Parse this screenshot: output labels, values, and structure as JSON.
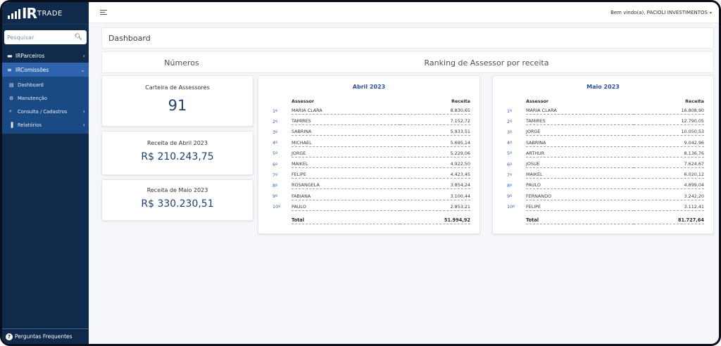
{
  "brand": {
    "logo_ir": "IR",
    "logo_trade": "TRADE"
  },
  "search": {
    "placeholder": "Pesquisar"
  },
  "sidebar": {
    "items": [
      {
        "label": "IRParceiros",
        "icon": "handshake-icon"
      },
      {
        "label": "IRComissões",
        "icon": "list-icon"
      }
    ],
    "subitems": [
      {
        "label": "Dashboard",
        "icon": "chart-icon"
      },
      {
        "label": "Manutenção",
        "icon": "gear-icon"
      },
      {
        "label": "Consulta / Cadastros",
        "icon": "search-icon"
      },
      {
        "label": "Relatórios",
        "icon": "bar-chart-icon"
      }
    ],
    "footer": "Perguntas Frequentes"
  },
  "topbar": {
    "welcome": "Bem vindo(a), PACIOLI INVESTIMENTOS"
  },
  "page": {
    "breadcrumb": "Dashboard",
    "section_left": "Números",
    "section_right": "Ranking de Assessor por receita"
  },
  "stats": [
    {
      "label": "Carteira de Assessores",
      "value": "91"
    },
    {
      "label": "Receita de Abril 2023",
      "value": "R$ 210.243,75"
    },
    {
      "label": "Receita de Maio 2023",
      "value": "R$ 330.230,51"
    }
  ],
  "rankings": [
    {
      "title": "Abril 2023",
      "header_name": "Assessor",
      "header_value": "Receita",
      "rows": [
        {
          "pos": "1º",
          "name": "MARIA CLARA",
          "value": "8.830,65"
        },
        {
          "pos": "2º",
          "name": "TAMIRES",
          "value": "7.152,72"
        },
        {
          "pos": "3º",
          "name": "SABRINA",
          "value": "5.933,51"
        },
        {
          "pos": "4º",
          "name": "MICHAEL",
          "value": "5.695,14"
        },
        {
          "pos": "5º",
          "name": "JORGE",
          "value": "5.229,06"
        },
        {
          "pos": "6º",
          "name": "MAIKEL",
          "value": "4.922,50"
        },
        {
          "pos": "7º",
          "name": "FELIPE",
          "value": "4.423,45"
        },
        {
          "pos": "8º",
          "name": "ROSANGELA",
          "value": "3.854,24"
        },
        {
          "pos": "9º",
          "name": "FABIANA",
          "value": "3.100,44"
        },
        {
          "pos": "10º",
          "name": "PAULO",
          "value": "2.853,21"
        }
      ],
      "total_label": "Total",
      "total_value": "51.994,92"
    },
    {
      "title": "Maio 2023",
      "header_name": "Assessor",
      "header_value": "Receita",
      "rows": [
        {
          "pos": "1º",
          "name": "MARIA CLARA",
          "value": "16.808,90"
        },
        {
          "pos": "2º",
          "name": "TAMIRES",
          "value": "12.790,05"
        },
        {
          "pos": "3º",
          "name": "JORGE",
          "value": "10.050,53"
        },
        {
          "pos": "4º",
          "name": "SABRINA",
          "value": "9.042,96"
        },
        {
          "pos": "5º",
          "name": "ARTHUR",
          "value": "8.136,76"
        },
        {
          "pos": "6º",
          "name": "JOSUE",
          "value": "7.624,67"
        },
        {
          "pos": "7º",
          "name": "MAIKEL",
          "value": "6.020,12"
        },
        {
          "pos": "8º",
          "name": "PAULO",
          "value": "4.899,04"
        },
        {
          "pos": "9º",
          "name": "FERNANDO",
          "value": "3.242,20"
        },
        {
          "pos": "10º",
          "name": "FELIPE",
          "value": "3.112,41"
        }
      ],
      "total_label": "Total",
      "total_value": "81.727,64"
    }
  ]
}
